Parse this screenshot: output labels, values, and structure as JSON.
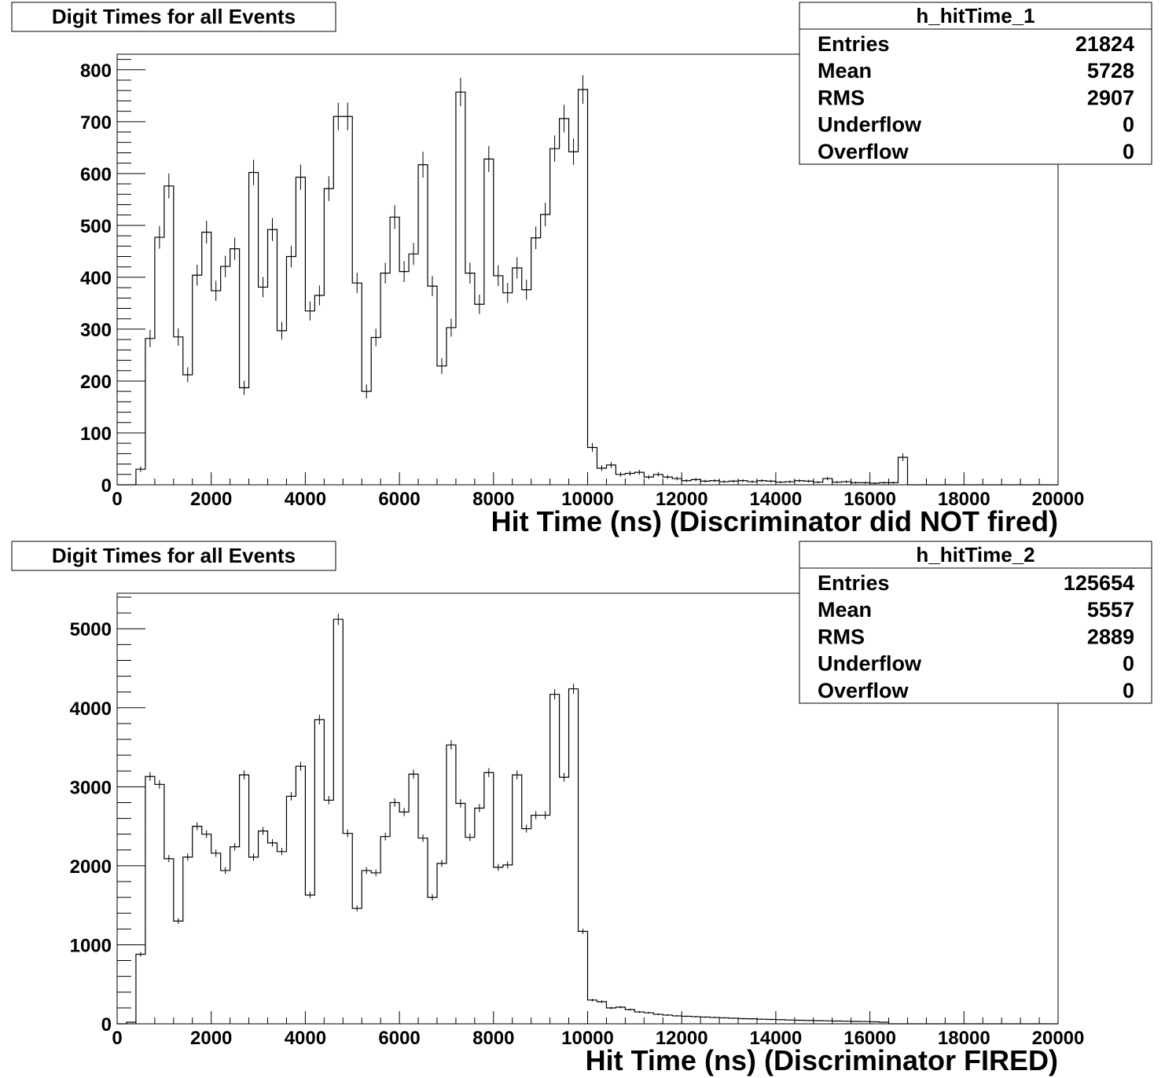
{
  "chart_data": [
    {
      "type": "bar",
      "title": "Digit Times for all Events",
      "xlabel": "Hit Time (ns) (Discriminator did NOT fired)",
      "ylabel": "",
      "xlim": [
        0,
        20000
      ],
      "ylim": [
        0,
        830
      ],
      "xticks": [
        0,
        2000,
        4000,
        6000,
        8000,
        10000,
        12000,
        14000,
        16000,
        18000,
        20000
      ],
      "yticks": [
        0,
        100,
        200,
        300,
        400,
        500,
        600,
        700,
        800
      ],
      "bin_width": 200,
      "values": [
        0,
        0,
        30,
        282,
        477,
        576,
        285,
        212,
        404,
        487,
        374,
        421,
        455,
        187,
        602,
        381,
        492,
        297,
        440,
        593,
        335,
        365,
        571,
        710,
        710,
        389,
        180,
        284,
        408,
        516,
        411,
        445,
        617,
        383,
        229,
        303,
        757,
        408,
        348,
        628,
        403,
        370,
        418,
        376,
        476,
        521,
        648,
        706,
        642,
        762,
        72,
        32,
        38,
        20,
        22,
        24,
        15,
        20,
        15,
        12,
        8,
        10,
        7,
        8,
        6,
        7,
        8,
        6,
        8,
        7,
        5,
        6,
        8,
        7,
        5,
        12,
        5,
        6,
        4,
        4,
        3,
        4,
        4,
        53,
        0,
        0,
        0,
        0,
        0,
        0,
        0,
        0,
        0,
        0,
        0,
        0,
        0,
        0,
        0,
        0
      ],
      "legend_position": "top-right",
      "stats": {
        "name": "h_hitTime_1",
        "rows": [
          {
            "label": "Entries",
            "value": "21824"
          },
          {
            "label": "Mean",
            "value": "5728"
          },
          {
            "label": "RMS",
            "value": "2907"
          },
          {
            "label": "Underflow",
            "value": "0"
          },
          {
            "label": "Overflow",
            "value": "0"
          }
        ]
      }
    },
    {
      "type": "bar",
      "title": "Digit Times for all Events",
      "xlabel": "Hit Time (ns) (Discriminator FIRED)",
      "ylabel": "",
      "xlim": [
        0,
        20000
      ],
      "ylim": [
        0,
        5450
      ],
      "xticks": [
        0,
        2000,
        4000,
        6000,
        8000,
        10000,
        12000,
        14000,
        16000,
        18000,
        20000
      ],
      "yticks": [
        0,
        1000,
        2000,
        3000,
        4000,
        5000
      ],
      "bin_width": 200,
      "values": [
        0,
        20,
        880,
        3130,
        3030,
        2090,
        1300,
        2110,
        2500,
        2400,
        2160,
        1940,
        2240,
        3150,
        2110,
        2440,
        2290,
        2180,
        2880,
        3260,
        1630,
        3850,
        2830,
        5120,
        2410,
        1460,
        1940,
        1910,
        2370,
        2800,
        2680,
        3160,
        2350,
        1600,
        2030,
        3530,
        2790,
        2360,
        2730,
        3180,
        1980,
        2010,
        3150,
        2470,
        2640,
        2640,
        4170,
        3120,
        4240,
        1170,
        300,
        280,
        200,
        210,
        180,
        150,
        140,
        120,
        110,
        100,
        95,
        90,
        85,
        80,
        75,
        70,
        65,
        62,
        58,
        55,
        52,
        48,
        45,
        42,
        40,
        38,
        35,
        33,
        30,
        28,
        25,
        20,
        0,
        0,
        0,
        0,
        0,
        0,
        0,
        0,
        0,
        0,
        0,
        0,
        0,
        0,
        0,
        0,
        0,
        0
      ],
      "legend_position": "top-right",
      "stats": {
        "name": "h_hitTime_2",
        "rows": [
          {
            "label": "Entries",
            "value": "125654"
          },
          {
            "label": "Mean",
            "value": "5557"
          },
          {
            "label": "RMS",
            "value": "2889"
          },
          {
            "label": "Underflow",
            "value": "0"
          },
          {
            "label": "Overflow",
            "value": "0"
          }
        ]
      }
    }
  ]
}
